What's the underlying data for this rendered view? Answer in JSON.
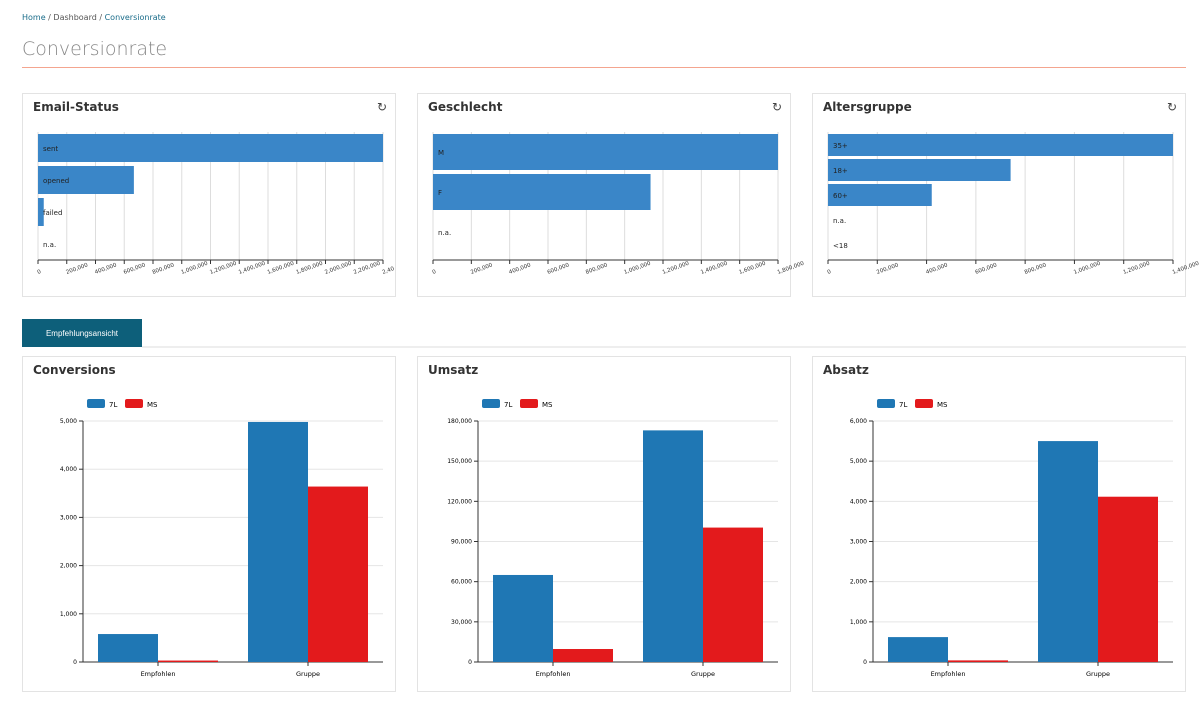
{
  "breadcrumb": {
    "home": "Home",
    "dashboard": "Dashboard",
    "current": "Conversionrate"
  },
  "page_title": "Conversionrate",
  "tab_button": "Empfehlungsansicht",
  "colors": {
    "hbar": "#3a86c8",
    "s1": "#1f77b4",
    "s2": "#e31a1c"
  },
  "reload_icon": "↻",
  "chart_data": [
    {
      "type": "bar",
      "orientation": "horizontal",
      "title": "Email-Status",
      "categories": [
        "sent",
        "opened",
        "failed",
        "n.a."
      ],
      "values": [
        2400000,
        667000,
        40000,
        0
      ],
      "xlim": [
        0,
        2400000
      ],
      "ticks": [
        "0",
        "200,000",
        "400,000",
        "600,000",
        "800,000",
        "1,000,000",
        "1,200,000",
        "1,400,000",
        "1,600,000",
        "1,800,000",
        "2,000,000",
        "2,200,000",
        "2,40"
      ]
    },
    {
      "type": "bar",
      "orientation": "horizontal",
      "title": "Geschlecht",
      "categories": [
        "M",
        "F",
        "n.a."
      ],
      "values": [
        1800000,
        1135000,
        0
      ],
      "xlim": [
        0,
        1800000
      ],
      "ticks": [
        "0",
        "200,000",
        "400,000",
        "600,000",
        "800,000",
        "1,000,000",
        "1,200,000",
        "1,400,000",
        "1,600,000",
        "1,800,000"
      ]
    },
    {
      "type": "bar",
      "orientation": "horizontal",
      "title": "Altersgruppe",
      "categories": [
        "35+",
        "18+",
        "60+",
        "n.a.",
        "<18"
      ],
      "values": [
        1400000,
        741000,
        421000,
        0,
        0
      ],
      "xlim": [
        0,
        1400000
      ],
      "ticks": [
        "0",
        "200,000",
        "400,000",
        "600,000",
        "800,000",
        "1,000,000",
        "1,200,000",
        "1,400,000"
      ]
    },
    {
      "type": "bar",
      "title": "Conversions",
      "categories": [
        "Empfohlen",
        "Gruppe"
      ],
      "series": [
        {
          "name": "7L",
          "values": [
            580,
            4980
          ]
        },
        {
          "name": "MS",
          "values": [
            30,
            3640
          ]
        }
      ],
      "ylim": [
        0,
        5000
      ],
      "ticks": [
        "0",
        "1,000",
        "2,000",
        "3,000",
        "4,000",
        "5,000"
      ]
    },
    {
      "type": "bar",
      "title": "Umsatz",
      "categories": [
        "Empfohlen",
        "Gruppe"
      ],
      "series": [
        {
          "name": "7L",
          "values": [
            65000,
            173000
          ]
        },
        {
          "name": "MS",
          "values": [
            9700,
            100400
          ]
        }
      ],
      "ylim": [
        0,
        180000
      ],
      "ticks": [
        "0",
        "30,000",
        "60,000",
        "90,000",
        "120,000",
        "150,000",
        "180,000"
      ]
    },
    {
      "type": "bar",
      "title": "Absatz",
      "categories": [
        "Empfohlen",
        "Gruppe"
      ],
      "series": [
        {
          "name": "7L",
          "values": [
            620,
            5500
          ]
        },
        {
          "name": "MS",
          "values": [
            40,
            4115
          ]
        }
      ],
      "ylim": [
        0,
        6000
      ],
      "ticks": [
        "0",
        "1,000",
        "2,000",
        "3,000",
        "4,000",
        "5,000",
        "6,000"
      ]
    }
  ]
}
